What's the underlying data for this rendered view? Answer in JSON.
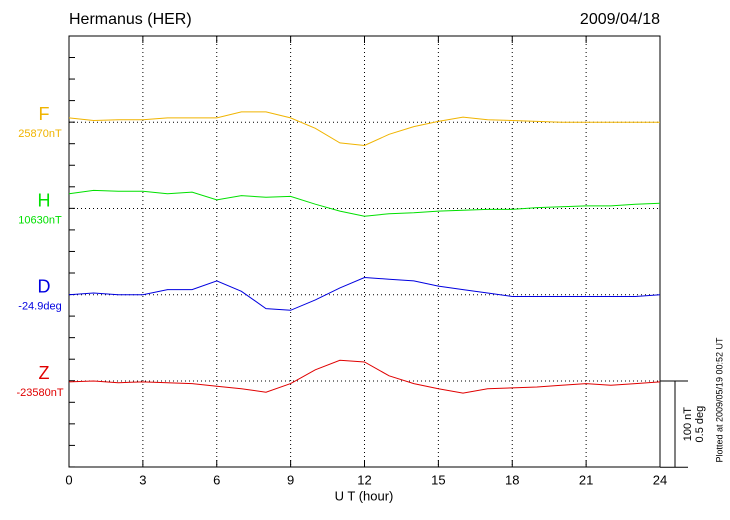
{
  "chart_data": {
    "type": "line",
    "title": "Hermanus (HER)",
    "date": "2009/04/18",
    "footer": "Plotted at 2009/05/19 00:52 UT",
    "xlabel": "U T (hour)",
    "xlim": [
      0,
      24
    ],
    "xticks": [
      0,
      3,
      6,
      9,
      12,
      15,
      18,
      21,
      24
    ],
    "grid": true,
    "scale_bar": {
      "value": 100,
      "label": "100 nT",
      "value2": 0.5,
      "label2": "0.5 deg"
    },
    "x": [
      0,
      1,
      2,
      3,
      4,
      5,
      6,
      7,
      8,
      9,
      10,
      11,
      12,
      13,
      14,
      15,
      16,
      17,
      18,
      19,
      20,
      21,
      22,
      23,
      24
    ],
    "series": [
      {
        "name": "F",
        "baseline_label": "25870nT",
        "color": "#f0b400",
        "values": [
          5,
          2,
          3,
          3,
          5,
          5,
          5,
          12,
          12,
          5,
          -7,
          -24,
          -27,
          -14,
          -5,
          1,
          6,
          3,
          2,
          1,
          0,
          0,
          0,
          0,
          0
        ]
      },
      {
        "name": "H",
        "baseline_label": "10630nT",
        "color": "#00e000",
        "values": [
          17,
          21,
          20,
          20,
          17,
          19,
          10,
          15,
          13,
          14,
          5,
          -3,
          -9,
          -6,
          -5,
          -3,
          -2,
          -1,
          -1,
          1,
          2,
          3,
          3,
          5,
          6
        ]
      },
      {
        "name": "D",
        "baseline_label": "-24.9deg",
        "color": "#0000e0",
        "axis": "y2",
        "values": [
          0,
          0.01,
          0,
          0,
          0.03,
          0.03,
          0.08,
          0.02,
          -0.08,
          -0.09,
          -0.03,
          0.04,
          0.1,
          0.09,
          0.08,
          0.05,
          0.03,
          0.01,
          -0.01,
          -0.01,
          -0.01,
          -0.01,
          -0.01,
          -0.01,
          0
        ]
      },
      {
        "name": "Z",
        "baseline_label": "-23580nT",
        "color": "#e00000",
        "values": [
          -1,
          0,
          -2,
          -1,
          -2,
          -3,
          -6,
          -9,
          -13,
          -3,
          13,
          24,
          22,
          6,
          -3,
          -9,
          -14,
          -9,
          -8,
          -7,
          -5,
          -3,
          -5,
          -3,
          -1
        ]
      }
    ]
  }
}
